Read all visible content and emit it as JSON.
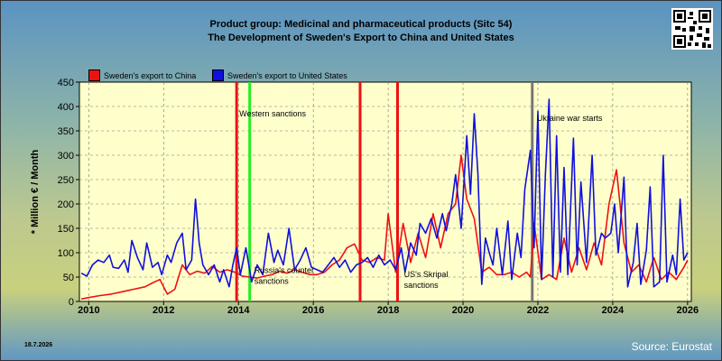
{
  "header": {
    "title_line1": "Product group: Medicinal and pharmaceutical products (Sitc 54)",
    "title_line2": "The Development of Sweden's Export to  China and United States"
  },
  "footer": {
    "date": "18.7.2026",
    "source": "Source: Eurostat"
  },
  "colors": {
    "china": "#ee1111",
    "us": "#1010dd",
    "event_red": "#ee1111",
    "event_green": "#22ee22",
    "event_gray": "#777777"
  },
  "chart_data": {
    "type": "line",
    "ylabel": "* Million € / Month",
    "xlabel": "",
    "ylim": [
      0,
      450
    ],
    "yticks": [
      0,
      50,
      100,
      150,
      200,
      250,
      300,
      350,
      400,
      450
    ],
    "xlim": [
      2009.75,
      2026.1
    ],
    "xticks": [
      2010,
      2012,
      2014,
      2016,
      2018,
      2020,
      2022,
      2024,
      2026
    ],
    "legend": {
      "placement": "top-left"
    },
    "series": [
      {
        "name": "Sweden's export to China",
        "color": "#ee1111",
        "points": [
          [
            2009.8,
            5
          ],
          [
            2010.0,
            8
          ],
          [
            2010.3,
            12
          ],
          [
            2010.6,
            15
          ],
          [
            2010.9,
            20
          ],
          [
            2011.2,
            25
          ],
          [
            2011.5,
            30
          ],
          [
            2011.7,
            38
          ],
          [
            2011.9,
            45
          ],
          [
            2012.0,
            30
          ],
          [
            2012.1,
            15
          ],
          [
            2012.3,
            25
          ],
          [
            2012.5,
            75
          ],
          [
            2012.7,
            55
          ],
          [
            2012.9,
            62
          ],
          [
            2013.1,
            58
          ],
          [
            2013.3,
            72
          ],
          [
            2013.5,
            60
          ],
          [
            2013.7,
            65
          ],
          [
            2013.9,
            60
          ],
          [
            2014.1,
            52
          ],
          [
            2014.3,
            50
          ],
          [
            2014.5,
            48
          ],
          [
            2014.7,
            52
          ],
          [
            2014.9,
            55
          ],
          [
            2015.1,
            62
          ],
          [
            2015.3,
            58
          ],
          [
            2015.5,
            65
          ],
          [
            2015.7,
            60
          ],
          [
            2015.9,
            55
          ],
          [
            2016.1,
            55
          ],
          [
            2016.3,
            60
          ],
          [
            2016.5,
            75
          ],
          [
            2016.7,
            85
          ],
          [
            2016.9,
            110
          ],
          [
            2017.1,
            118
          ],
          [
            2017.3,
            85
          ],
          [
            2017.5,
            80
          ],
          [
            2017.7,
            90
          ],
          [
            2017.9,
            85
          ],
          [
            2018.0,
            180
          ],
          [
            2018.2,
            60
          ],
          [
            2018.4,
            160
          ],
          [
            2018.6,
            80
          ],
          [
            2018.8,
            140
          ],
          [
            2019.0,
            90
          ],
          [
            2019.2,
            180
          ],
          [
            2019.4,
            110
          ],
          [
            2019.6,
            180
          ],
          [
            2019.8,
            200
          ],
          [
            2019.95,
            300
          ],
          [
            2020.1,
            210
          ],
          [
            2020.3,
            170
          ],
          [
            2020.5,
            60
          ],
          [
            2020.7,
            70
          ],
          [
            2020.9,
            55
          ],
          [
            2021.1,
            55
          ],
          [
            2021.3,
            60
          ],
          [
            2021.5,
            50
          ],
          [
            2021.7,
            60
          ],
          [
            2021.8,
            50
          ],
          [
            2021.9,
            160
          ],
          [
            2022.1,
            45
          ],
          [
            2022.3,
            55
          ],
          [
            2022.5,
            45
          ],
          [
            2022.7,
            130
          ],
          [
            2022.9,
            60
          ],
          [
            2023.1,
            110
          ],
          [
            2023.3,
            65
          ],
          [
            2023.5,
            120
          ],
          [
            2023.7,
            75
          ],
          [
            2023.9,
            200
          ],
          [
            2024.1,
            270
          ],
          [
            2024.3,
            120
          ],
          [
            2024.5,
            60
          ],
          [
            2024.7,
            75
          ],
          [
            2024.9,
            40
          ],
          [
            2025.1,
            90
          ],
          [
            2025.3,
            45
          ],
          [
            2025.5,
            60
          ],
          [
            2025.7,
            45
          ],
          [
            2025.9,
            70
          ],
          [
            2026.0,
            85
          ]
        ]
      },
      {
        "name": "Sweden's export to United States",
        "color": "#1010dd",
        "points": [
          [
            2009.8,
            58
          ],
          [
            2009.95,
            52
          ],
          [
            2010.1,
            75
          ],
          [
            2010.25,
            85
          ],
          [
            2010.4,
            80
          ],
          [
            2010.55,
            95
          ],
          [
            2010.65,
            70
          ],
          [
            2010.8,
            68
          ],
          [
            2010.95,
            85
          ],
          [
            2011.05,
            60
          ],
          [
            2011.15,
            125
          ],
          [
            2011.3,
            90
          ],
          [
            2011.45,
            65
          ],
          [
            2011.55,
            120
          ],
          [
            2011.7,
            70
          ],
          [
            2011.85,
            80
          ],
          [
            2011.95,
            55
          ],
          [
            2012.1,
            95
          ],
          [
            2012.2,
            80
          ],
          [
            2012.35,
            120
          ],
          [
            2012.5,
            140
          ],
          [
            2012.6,
            65
          ],
          [
            2012.75,
            85
          ],
          [
            2012.85,
            210
          ],
          [
            2012.95,
            120
          ],
          [
            2013.05,
            75
          ],
          [
            2013.2,
            55
          ],
          [
            2013.35,
            75
          ],
          [
            2013.5,
            40
          ],
          [
            2013.6,
            65
          ],
          [
            2013.75,
            30
          ],
          [
            2013.85,
            75
          ],
          [
            2013.95,
            110
          ],
          [
            2014.05,
            55
          ],
          [
            2014.2,
            110
          ],
          [
            2014.35,
            40
          ],
          [
            2014.5,
            75
          ],
          [
            2014.65,
            55
          ],
          [
            2014.8,
            140
          ],
          [
            2014.95,
            80
          ],
          [
            2015.05,
            105
          ],
          [
            2015.2,
            75
          ],
          [
            2015.35,
            150
          ],
          [
            2015.5,
            65
          ],
          [
            2015.65,
            85
          ],
          [
            2015.8,
            110
          ],
          [
            2015.95,
            70
          ],
          [
            2016.1,
            65
          ],
          [
            2016.25,
            60
          ],
          [
            2016.4,
            75
          ],
          [
            2016.55,
            90
          ],
          [
            2016.7,
            70
          ],
          [
            2016.85,
            85
          ],
          [
            2017.0,
            60
          ],
          [
            2017.15,
            75
          ],
          [
            2017.3,
            80
          ],
          [
            2017.45,
            90
          ],
          [
            2017.6,
            70
          ],
          [
            2017.75,
            95
          ],
          [
            2017.9,
            75
          ],
          [
            2018.05,
            85
          ],
          [
            2018.2,
            65
          ],
          [
            2018.35,
            110
          ],
          [
            2018.45,
            60
          ],
          [
            2018.6,
            120
          ],
          [
            2018.75,
            95
          ],
          [
            2018.85,
            160
          ],
          [
            2019.0,
            140
          ],
          [
            2019.15,
            170
          ],
          [
            2019.3,
            130
          ],
          [
            2019.45,
            180
          ],
          [
            2019.55,
            145
          ],
          [
            2019.7,
            200
          ],
          [
            2019.8,
            260
          ],
          [
            2019.95,
            150
          ],
          [
            2020.1,
            340
          ],
          [
            2020.2,
            220
          ],
          [
            2020.3,
            385
          ],
          [
            2020.4,
            260
          ],
          [
            2020.5,
            35
          ],
          [
            2020.6,
            130
          ],
          [
            2020.7,
            100
          ],
          [
            2020.8,
            75
          ],
          [
            2020.9,
            150
          ],
          [
            2021.05,
            55
          ],
          [
            2021.2,
            165
          ],
          [
            2021.3,
            45
          ],
          [
            2021.45,
            140
          ],
          [
            2021.55,
            90
          ],
          [
            2021.65,
            230
          ],
          [
            2021.8,
            310
          ],
          [
            2021.9,
            110
          ],
          [
            2022.0,
            390
          ],
          [
            2022.1,
            45
          ],
          [
            2022.2,
            260
          ],
          [
            2022.3,
            415
          ],
          [
            2022.4,
            50
          ],
          [
            2022.5,
            340
          ],
          [
            2022.6,
            60
          ],
          [
            2022.7,
            275
          ],
          [
            2022.8,
            55
          ],
          [
            2022.95,
            335
          ],
          [
            2023.05,
            75
          ],
          [
            2023.15,
            245
          ],
          [
            2023.3,
            80
          ],
          [
            2023.45,
            300
          ],
          [
            2023.55,
            95
          ],
          [
            2023.7,
            140
          ],
          [
            2023.8,
            130
          ],
          [
            2023.95,
            140
          ],
          [
            2024.05,
            200
          ],
          [
            2024.15,
            100
          ],
          [
            2024.3,
            255
          ],
          [
            2024.4,
            30
          ],
          [
            2024.55,
            80
          ],
          [
            2024.65,
            160
          ],
          [
            2024.75,
            35
          ],
          [
            2024.9,
            105
          ],
          [
            2025.0,
            235
          ],
          [
            2025.1,
            30
          ],
          [
            2025.25,
            40
          ],
          [
            2025.35,
            300
          ],
          [
            2025.45,
            40
          ],
          [
            2025.6,
            95
          ],
          [
            2025.7,
            55
          ],
          [
            2025.8,
            210
          ],
          [
            2025.9,
            85
          ],
          [
            2026.0,
            100
          ]
        ]
      }
    ],
    "events": [
      {
        "x": 2013.95,
        "color": "#ee1111"
      },
      {
        "x": 2014.3,
        "color": "#22ee22"
      },
      {
        "x": 2017.25,
        "color": "#ee1111"
      },
      {
        "x": 2018.25,
        "color": "#ee1111"
      },
      {
        "x": 2021.85,
        "color": "#777777"
      }
    ],
    "annotations": [
      {
        "text": "Western sanctions",
        "x": 2013.95,
        "y": 380
      },
      {
        "text": "Russia's counter",
        "x": 2014.35,
        "y": 58
      },
      {
        "text": "sanctions",
        "x": 2014.35,
        "y": 36
      },
      {
        "text": "US's Skripal",
        "x": 2018.35,
        "y": 50
      },
      {
        "text": "sanctions",
        "x": 2018.35,
        "y": 28
      },
      {
        "text": "Ukraine war starts",
        "x": 2021.9,
        "y": 370
      }
    ]
  }
}
